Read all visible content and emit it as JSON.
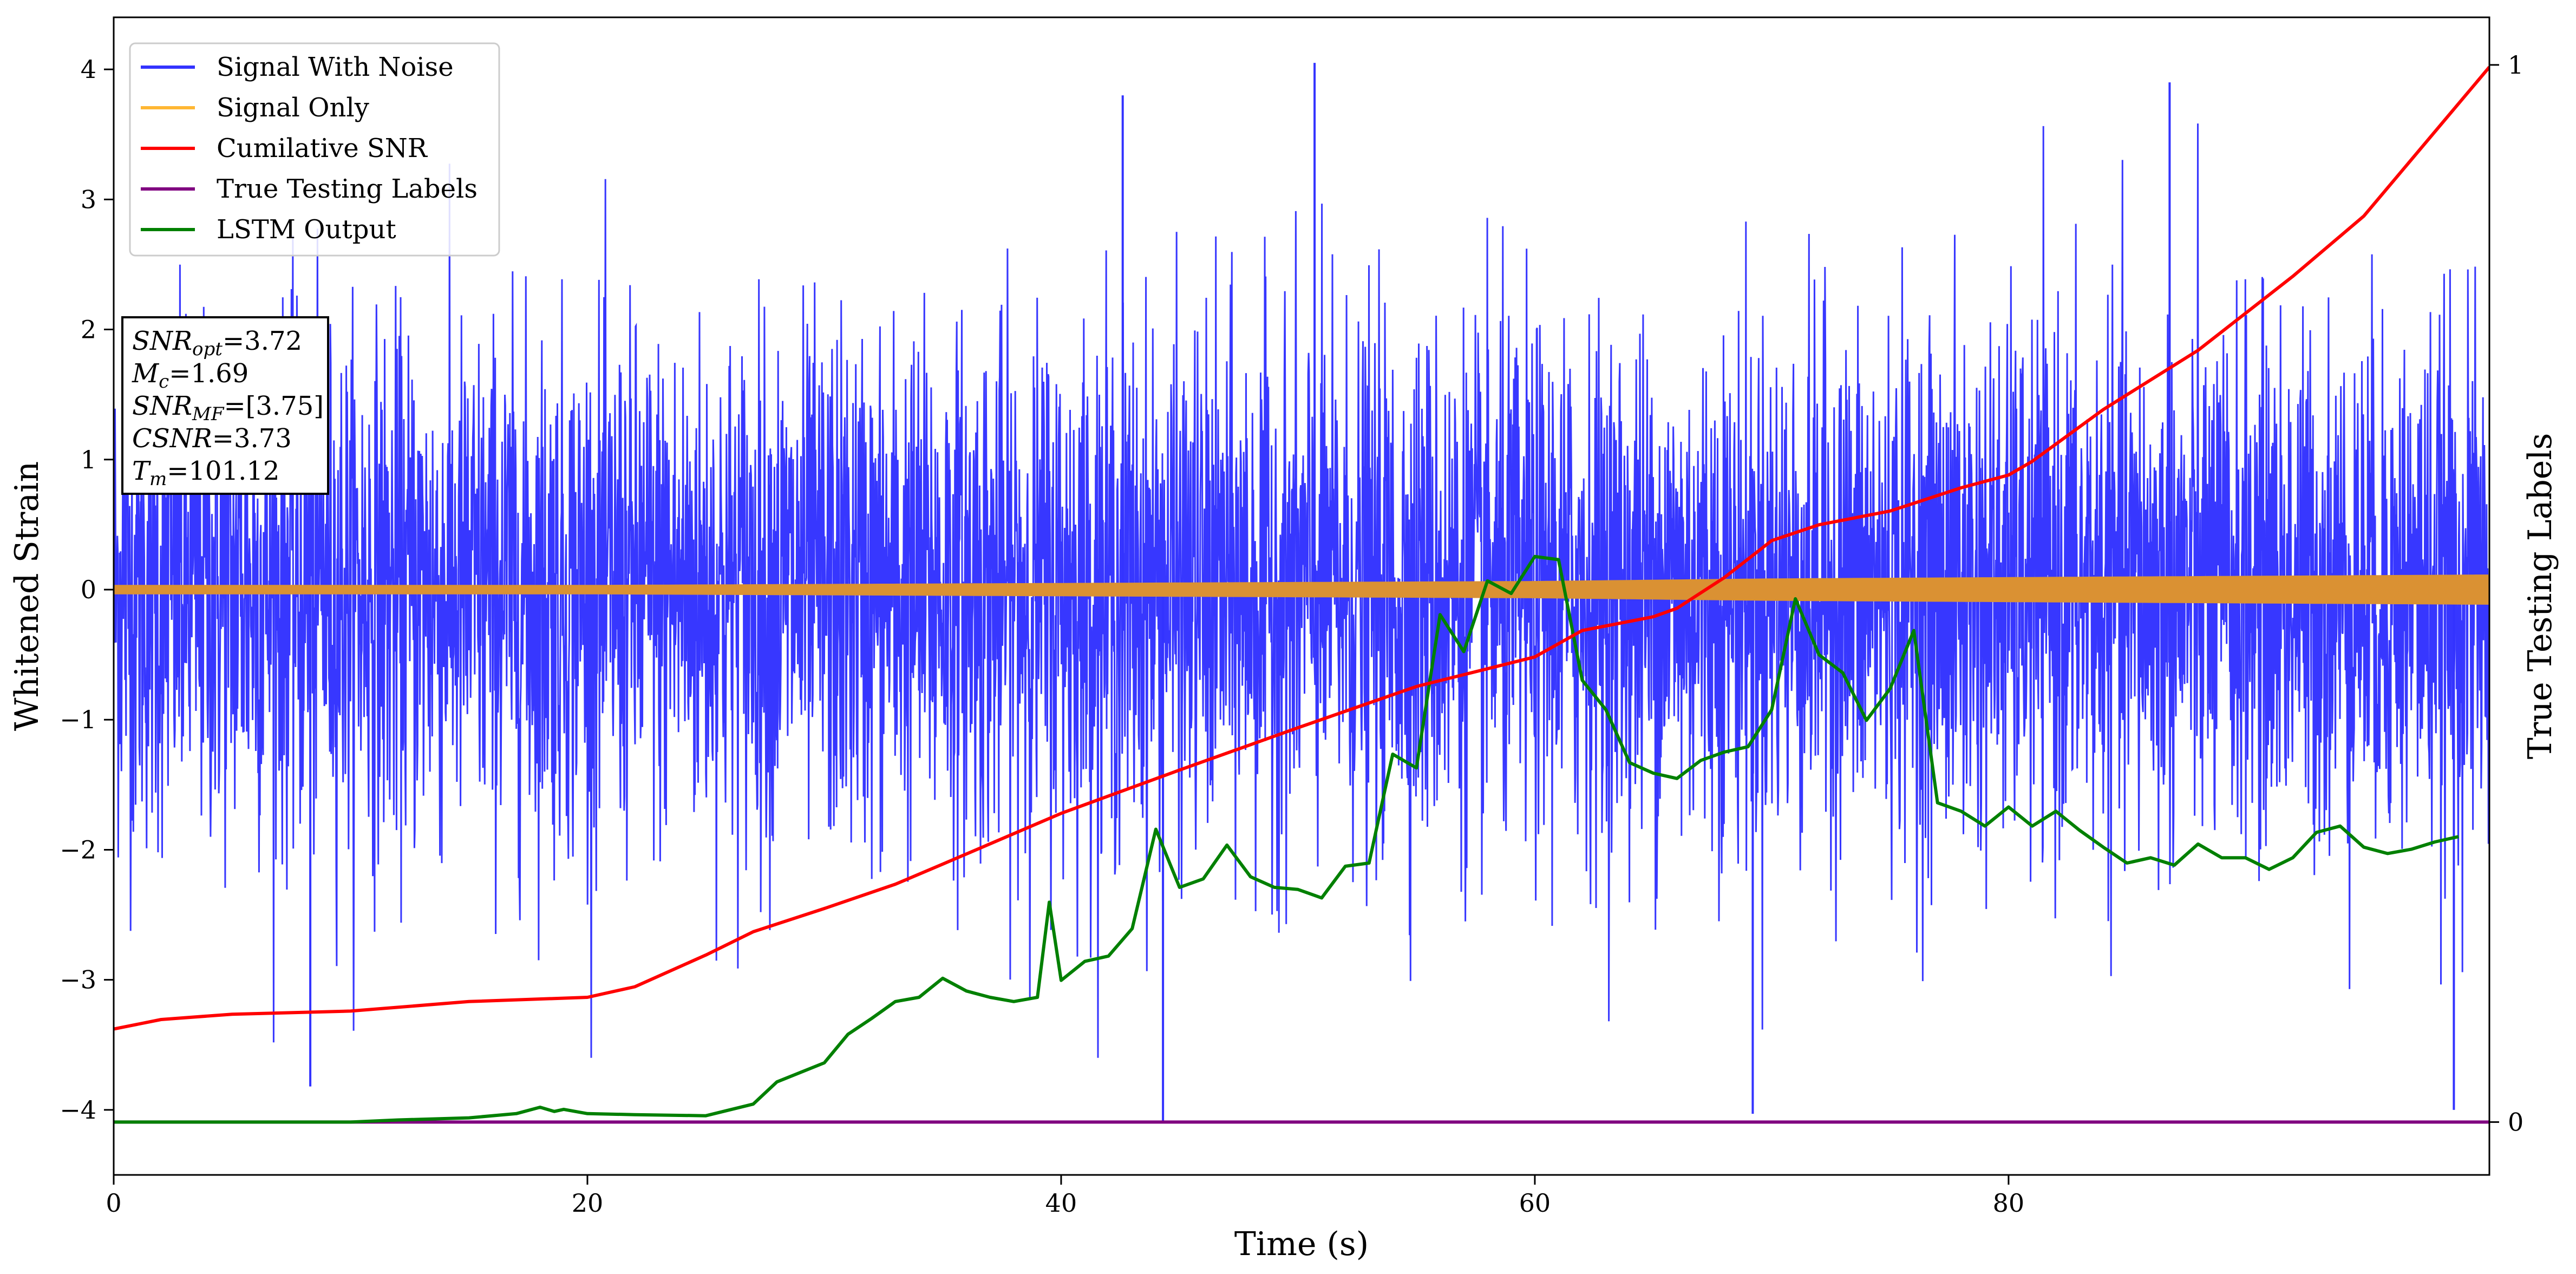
{
  "chart_data": {
    "type": "line",
    "xlabel": "Time (s)",
    "ylabel": "Whitened Strain",
    "y2label": "True Testing Labels",
    "xlim": [
      0,
      100.3
    ],
    "ylim": [
      -4.5,
      4.4
    ],
    "y2lim": [
      -0.05,
      1.045
    ],
    "x_ticks": [
      0,
      20,
      40,
      60,
      80
    ],
    "y_ticks": [
      -4,
      -3,
      -2,
      -1,
      0,
      1,
      2,
      3,
      4
    ],
    "y2_ticks": [
      0,
      1
    ],
    "grid": false,
    "legend_position": "upper-left",
    "info_box": [
      {
        "base": "SNR",
        "sub": "opt",
        "value": "=3.72"
      },
      {
        "base": "M",
        "sub": "c",
        "value": "=1.69"
      },
      {
        "base": "SNR",
        "sub": "MF",
        "value": "=[3.75]"
      },
      {
        "base": "CSNR",
        "sub": "",
        "value": "=3.73"
      },
      {
        "base": "T",
        "sub": "m",
        "value": "=101.12"
      }
    ],
    "series": [
      {
        "name": "Signal With Noise",
        "color": "#3333ff",
        "axis": "left",
        "kind": "noise",
        "std": 1.0,
        "x_range": [
          0,
          100.3
        ],
        "spikes": [
          {
            "x": 8.3,
            "y": -3.82
          },
          {
            "x": 44.3,
            "y": -4.1
          },
          {
            "x": 50.7,
            "y": 4.05
          },
          {
            "x": 69.2,
            "y": -4.03
          },
          {
            "x": 42.6,
            "y": 3.8
          },
          {
            "x": 98.8,
            "y": -4.0
          },
          {
            "x": 86.8,
            "y": 3.9
          }
        ]
      },
      {
        "name": "Signal Only",
        "color": "#ffb733",
        "axis": "left",
        "kind": "envelope",
        "envelope": [
          [
            0,
            0.03
          ],
          [
            20,
            0.03
          ],
          [
            40,
            0.045
          ],
          [
            60,
            0.06
          ],
          [
            70,
            0.08
          ],
          [
            80,
            0.09
          ],
          [
            100.3,
            0.11
          ]
        ]
      },
      {
        "name": "Cumilative SNR",
        "color": "#ff0000",
        "axis": "right",
        "x": [
          0,
          2,
          5,
          10,
          15,
          20,
          22,
          25,
          27,
          30,
          33,
          35,
          40,
          45,
          50,
          55,
          60,
          62,
          65,
          66,
          68,
          70,
          72,
          75,
          78,
          80,
          81,
          84,
          88,
          92,
          95,
          100.3
        ],
        "y": [
          0.088,
          0.097,
          0.102,
          0.105,
          0.114,
          0.118,
          0.128,
          0.158,
          0.18,
          0.202,
          0.225,
          0.244,
          0.292,
          0.333,
          0.373,
          0.412,
          0.44,
          0.465,
          0.478,
          0.486,
          0.515,
          0.55,
          0.565,
          0.578,
          0.6,
          0.612,
          0.625,
          0.674,
          0.73,
          0.8,
          0.857,
          0.998
        ]
      },
      {
        "name": "True Testing Labels",
        "color": "#800080",
        "axis": "right",
        "x": [
          0,
          100.3
        ],
        "y": [
          0,
          0
        ]
      },
      {
        "name": "LSTM Output",
        "color": "#008000",
        "axis": "right",
        "x": [
          0,
          10,
          12,
          15,
          17,
          18,
          18.6,
          19,
          20,
          22,
          25,
          27,
          28,
          30,
          31,
          32,
          33,
          34,
          35,
          36,
          37,
          38,
          39,
          39.5,
          40,
          41,
          42,
          43,
          44,
          45,
          46,
          47,
          48,
          49,
          50,
          51,
          52,
          53,
          54,
          55,
          56,
          57,
          58,
          59,
          60,
          61,
          62,
          63,
          64,
          65,
          66,
          67,
          68,
          69,
          70,
          71,
          72,
          73,
          74,
          75,
          76,
          77,
          78,
          79,
          80,
          81,
          82,
          83,
          84,
          85,
          86,
          87,
          88,
          89,
          90,
          91,
          92,
          93,
          94,
          95,
          96,
          97,
          98,
          99
        ],
        "y": [
          0,
          0,
          0.002,
          0.004,
          0.008,
          0.014,
          0.01,
          0.012,
          0.008,
          0.007,
          0.006,
          0.017,
          0.038,
          0.056,
          0.083,
          0.098,
          0.114,
          0.118,
          0.136,
          0.124,
          0.118,
          0.114,
          0.118,
          0.208,
          0.134,
          0.152,
          0.157,
          0.183,
          0.277,
          0.222,
          0.23,
          0.262,
          0.232,
          0.222,
          0.22,
          0.212,
          0.242,
          0.245,
          0.348,
          0.335,
          0.48,
          0.445,
          0.512,
          0.5,
          0.535,
          0.532,
          0.418,
          0.39,
          0.34,
          0.33,
          0.325,
          0.342,
          0.35,
          0.355,
          0.39,
          0.495,
          0.442,
          0.425,
          0.38,
          0.41,
          0.465,
          0.302,
          0.294,
          0.28,
          0.298,
          0.28,
          0.294,
          0.276,
          0.26,
          0.245,
          0.25,
          0.243,
          0.263,
          0.25,
          0.25,
          0.239,
          0.25,
          0.274,
          0.28,
          0.26,
          0.254,
          0.258,
          0.265,
          0.27
        ]
      }
    ]
  }
}
